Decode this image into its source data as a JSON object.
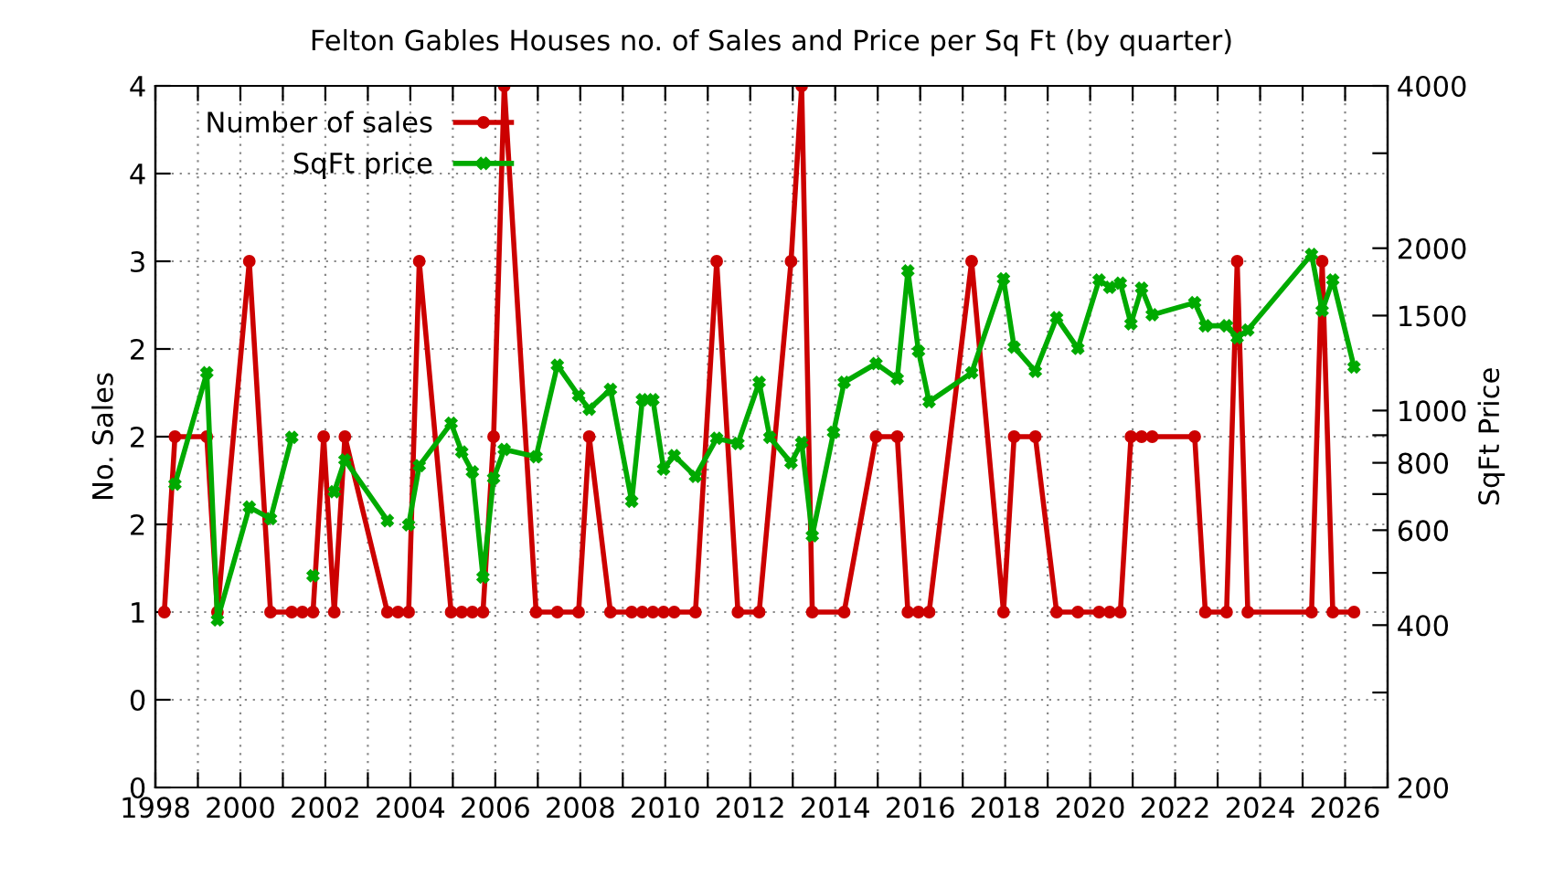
{
  "chart_data": {
    "type": "line",
    "title": "Felton Gables Houses no. of Sales and Price per Sq Ft (by quarter)",
    "ylabel": "No. Sales",
    "y2label": "SqFt Price",
    "xlim": [
      1998,
      2027
    ],
    "xticks": [
      1998,
      {
        "value": 1999,
        "label": null
      },
      2000,
      {
        "value": 2001,
        "label": null
      },
      2002,
      {
        "value": 2003,
        "label": null
      },
      2004,
      {
        "value": 2005,
        "label": null
      },
      2006,
      {
        "value": 2007,
        "label": null
      },
      2008,
      {
        "value": 2009,
        "label": null
      },
      2010,
      {
        "value": 2011,
        "label": null
      },
      2012,
      {
        "value": 2013,
        "label": null
      },
      2014,
      {
        "value": 2015,
        "label": null
      },
      2016,
      {
        "value": 2017,
        "label": null
      },
      2018,
      {
        "value": 2019,
        "label": null
      },
      2020,
      {
        "value": 2021,
        "label": null
      },
      2022,
      {
        "value": 2023,
        "label": null
      },
      2024,
      {
        "value": 2025,
        "label": null
      },
      2026,
      {
        "value": 2027,
        "label": null
      }
    ],
    "ylim": [
      0,
      4
    ],
    "yticks": [
      0,
      {
        "value": 0.5,
        "label": "0"
      },
      1,
      {
        "value": 1.5,
        "label": "2"
      },
      2,
      {
        "value": 2.5,
        "label": "2"
      },
      3,
      {
        "value": 3.5,
        "label": "4"
      },
      4
    ],
    "log": "y2",
    "y2lim": [
      200,
      4000
    ],
    "y2ticks": [
      200,
      {
        "value": 300,
        "label": null
      },
      400,
      {
        "value": 500,
        "label": null
      },
      600,
      {
        "value": 700,
        "label": null
      },
      800,
      {
        "value": 900,
        "label": null
      },
      1000,
      1500,
      2000,
      {
        "value": 3000,
        "label": null
      },
      4000
    ],
    "grid": true,
    "legend": "top left",
    "line_style": "solid",
    "series": [
      {
        "name": "Number of sales",
        "color": "#cc0000",
        "marker": "circle",
        "x": [
          1998.21,
          1998.46,
          1999.21,
          1999.46,
          2000.21,
          2000.71,
          2001.21,
          2001.46,
          2001.71,
          2001.96,
          2002.21,
          2002.46,
          2003.46,
          2003.71,
          2003.96,
          2004.21,
          2004.96,
          2005.21,
          2005.46,
          2005.71,
          2005.96,
          2006.21,
          2006.96,
          2007.46,
          2007.96,
          2008.21,
          2008.71,
          2009.21,
          2009.46,
          2009.71,
          2009.96,
          2010.21,
          2010.71,
          2011.21,
          2011.71,
          2012.21,
          2012.96,
          2013.21,
          2013.46,
          2014.21,
          2014.96,
          2015.46,
          2015.71,
          2015.96,
          2016.21,
          2017.21,
          2017.96,
          2018.21,
          2018.71,
          2019.21,
          2019.71,
          2020.21,
          2020.46,
          2020.71,
          2020.96,
          2021.21,
          2021.46,
          2022.46,
          2022.71,
          2023.21,
          2023.46,
          2023.71,
          2025.21,
          2025.46,
          2025.71,
          2026.21
        ],
        "values": [
          1,
          2,
          2,
          1,
          3,
          1,
          1,
          1,
          1,
          2,
          1,
          2,
          1,
          1,
          1,
          3,
          1,
          1,
          1,
          1,
          2,
          4,
          1,
          1,
          1,
          2,
          1,
          1,
          1,
          1,
          1,
          1,
          1,
          3,
          1,
          1,
          3,
          4,
          1,
          1,
          2,
          2,
          1,
          1,
          1,
          3,
          1,
          2,
          2,
          1,
          1,
          1,
          1,
          1,
          2,
          2,
          2,
          2,
          1,
          1,
          3,
          1,
          1,
          3,
          1,
          1
        ]
      },
      {
        "name": "SqFt price",
        "color": "#00aa00",
        "marker": "cross",
        "axis": "y2",
        "x": [
          1998.46,
          1999.21,
          1999.46,
          2000.21,
          2000.71,
          2001.21,
          2001.46,
          2001.71,
          2001.96,
          2002.21,
          2002.46,
          2003.46,
          2003.71,
          2003.96,
          2004.21,
          2004.96,
          2005.21,
          2005.46,
          2005.71,
          2005.96,
          2006.21,
          2006.96,
          2007.46,
          2007.96,
          2008.21,
          2008.71,
          2009.21,
          2009.46,
          2009.71,
          2009.96,
          2010.21,
          2010.71,
          2011.21,
          2011.71,
          2012.21,
          2012.46,
          2012.96,
          2013.21,
          2013.46,
          2013.96,
          2014.21,
          2014.96,
          2015.46,
          2015.71,
          2015.96,
          2016.21,
          2017.21,
          2017.96,
          2018.21,
          2018.71,
          2019.21,
          2019.71,
          2020.21,
          2020.46,
          2020.71,
          2020.96,
          2021.21,
          2021.46,
          2022.46,
          2022.71,
          2023.21,
          2023.46,
          2023.71,
          2025.21,
          2025.46,
          2025.71,
          2026.21
        ],
        "values": [
          730,
          1175,
          409,
          662,
          630,
          892,
          null,
          494,
          null,
          707,
          810,
          625,
          null,
          614,
          790,
          947,
          838,
          770,
          491,
          749,
          847,
          821,
          1213,
          1066,
          1006,
          1094,
          679,
          1047,
          1047,
          779,
          825,
          755,
          888,
          869,
          1128,
          892,
          800,
          872,
          586,
          911,
          1128,
          1222,
          1146,
          1816,
          1288,
          1038,
          1175,
          1754,
          1311,
          1182,
          1486,
          1304,
          1746,
          1693,
          1723,
          1448,
          1686,
          1505,
          1585,
          1436,
          1436,
          1364,
          1410,
          1948,
          1532,
          1746,
          1204
        ]
      }
    ]
  }
}
